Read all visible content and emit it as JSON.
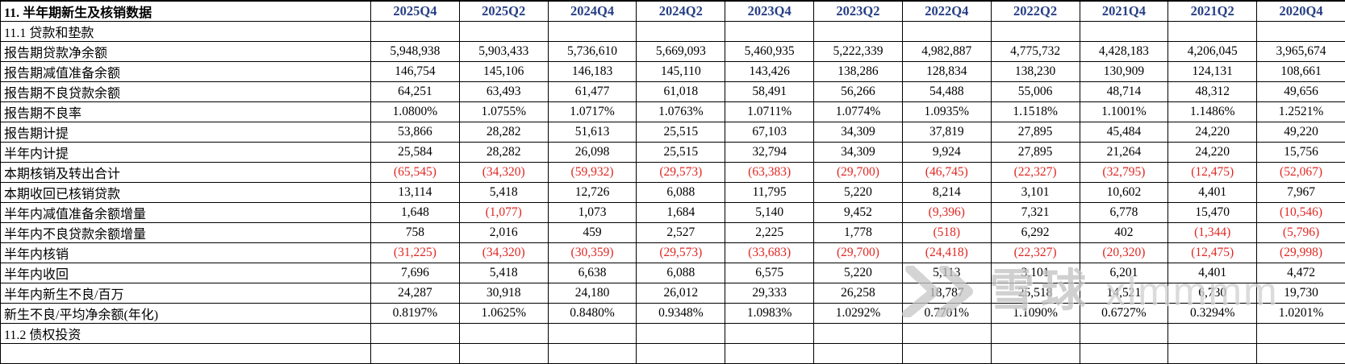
{
  "table": {
    "title": "11. 半年期新生及核销数据",
    "columns": [
      "2025Q4",
      "2025Q2",
      "2024Q4",
      "2024Q2",
      "2023Q4",
      "2023Q2",
      "2022Q4",
      "2022Q2",
      "2021Q4",
      "2021Q2",
      "2020Q4"
    ],
    "rows": [
      {
        "label": "11.1 贷款和垫款",
        "section": true,
        "values": []
      },
      {
        "label": "报告期贷款净余额",
        "values": [
          "5,948,938",
          "5,903,433",
          "5,736,610",
          "5,669,093",
          "5,460,935",
          "5,222,339",
          "4,982,887",
          "4,775,732",
          "4,428,183",
          "4,206,045",
          "3,965,674"
        ]
      },
      {
        "label": "报告期减值准备余额",
        "values": [
          "146,754",
          "145,106",
          "146,183",
          "145,110",
          "143,426",
          "138,286",
          "128,834",
          "138,230",
          "130,909",
          "124,131",
          "108,661"
        ]
      },
      {
        "label": "报告期不良贷款余额",
        "values": [
          "64,251",
          "63,493",
          "61,477",
          "61,018",
          "58,491",
          "56,266",
          "54,488",
          "55,006",
          "48,714",
          "48,312",
          "49,656"
        ]
      },
      {
        "label": "报告期不良率",
        "values": [
          "1.0800%",
          "1.0755%",
          "1.0717%",
          "1.0763%",
          "1.0711%",
          "1.0774%",
          "1.0935%",
          "1.1518%",
          "1.1001%",
          "1.1486%",
          "1.2521%"
        ]
      },
      {
        "label": "报告期计提",
        "values": [
          "53,866",
          "28,282",
          "51,613",
          "25,515",
          "67,103",
          "34,309",
          "37,819",
          "27,895",
          "45,484",
          "24,220",
          "49,220"
        ]
      },
      {
        "label": "半年内计提",
        "values": [
          "25,584",
          "28,282",
          "26,098",
          "25,515",
          "32,794",
          "34,309",
          "9,924",
          "27,895",
          "21,264",
          "24,220",
          "15,756"
        ]
      },
      {
        "label": "本期核销及转出合计",
        "values": [
          "(65,545)",
          "(34,320)",
          "(59,932)",
          "(29,573)",
          "(63,383)",
          "(29,700)",
          "(46,745)",
          "(22,327)",
          "(32,795)",
          "(12,475)",
          "(52,067)"
        ]
      },
      {
        "label": "本期收回已核销贷款",
        "values": [
          "13,114",
          "5,418",
          "12,726",
          "6,088",
          "11,795",
          "5,220",
          "8,214",
          "3,101",
          "10,602",
          "4,401",
          "7,967"
        ]
      },
      {
        "label": "半年内减值准备余额增量",
        "values": [
          "1,648",
          "(1,077)",
          "1,073",
          "1,684",
          "5,140",
          "9,452",
          "(9,396)",
          "7,321",
          "6,778",
          "15,470",
          "(10,546)"
        ]
      },
      {
        "label": "半年内不良贷款余额增量",
        "values": [
          "758",
          "2,016",
          "459",
          "2,527",
          "2,225",
          "1,778",
          "(518)",
          "6,292",
          "402",
          "(1,344)",
          "(5,796)"
        ]
      },
      {
        "label": "半年内核销",
        "values": [
          "(31,225)",
          "(34,320)",
          "(30,359)",
          "(29,573)",
          "(33,683)",
          "(29,700)",
          "(24,418)",
          "(22,327)",
          "(20,320)",
          "(12,475)",
          "(29,998)"
        ]
      },
      {
        "label": "半年内收回",
        "values": [
          "7,696",
          "5,418",
          "6,638",
          "6,088",
          "6,575",
          "5,220",
          "5,113",
          "3,101",
          "6,201",
          "4,401",
          "4,472"
        ]
      },
      {
        "label": "半年内新生不良/百万",
        "values": [
          "24,287",
          "30,918",
          "24,180",
          "26,012",
          "29,333",
          "26,258",
          "18,787",
          "25,518",
          "14,521",
          "6,730",
          "19,730"
        ]
      },
      {
        "label": "新生不良/平均净余额(年化)",
        "values": [
          "0.8197%",
          "1.0625%",
          "0.8480%",
          "0.9348%",
          "1.0983%",
          "1.0292%",
          "0.7701%",
          "1.1090%",
          "0.6727%",
          "0.3294%",
          "1.0201%"
        ]
      },
      {
        "label": "11.2 债权投资",
        "section": true,
        "values": []
      },
      {
        "label": "",
        "section": false,
        "values": []
      }
    ]
  },
  "watermark": {
    "brand": "雪球",
    "username": "xlmmmm"
  },
  "colors": {
    "header_blue": "#273f85",
    "negative_red": "#e02722",
    "grid_black": "#000000",
    "watermark_gray": "#c8c8c8"
  }
}
